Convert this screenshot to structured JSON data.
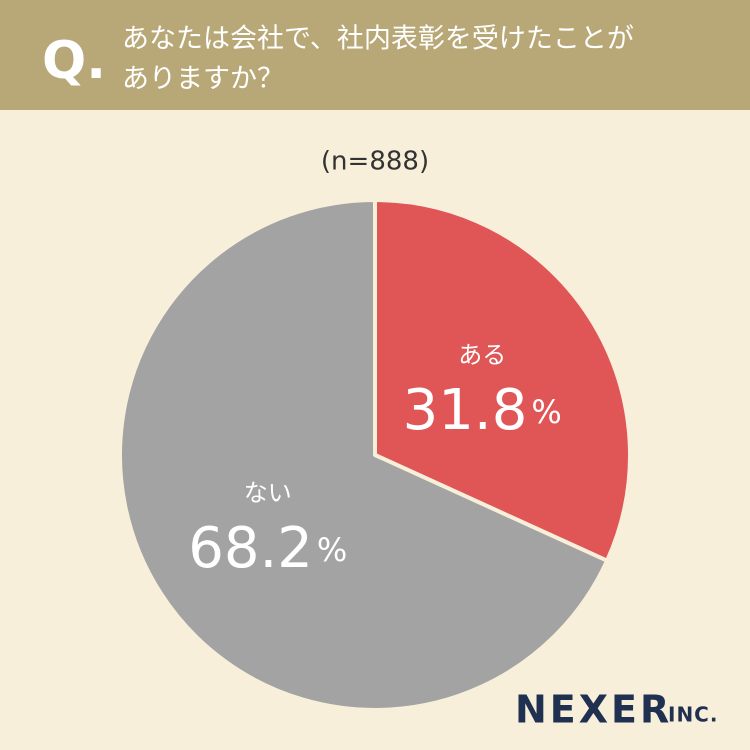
{
  "chart_data": {
    "type": "pie",
    "question_mark": "Q.",
    "title_lines": [
      "あなたは会社で、社内表彰を受けたことが",
      "ありますか？"
    ],
    "subtitle": "(n=888)",
    "categories": [
      "ある",
      "ない"
    ],
    "values": [
      31.8,
      68.2
    ],
    "value_labels": [
      "31.8%",
      "68.2%"
    ],
    "colors": [
      "#e05656",
      "#a3a3a3"
    ],
    "brand": "NEXER",
    "brand_suffix": "INC."
  }
}
